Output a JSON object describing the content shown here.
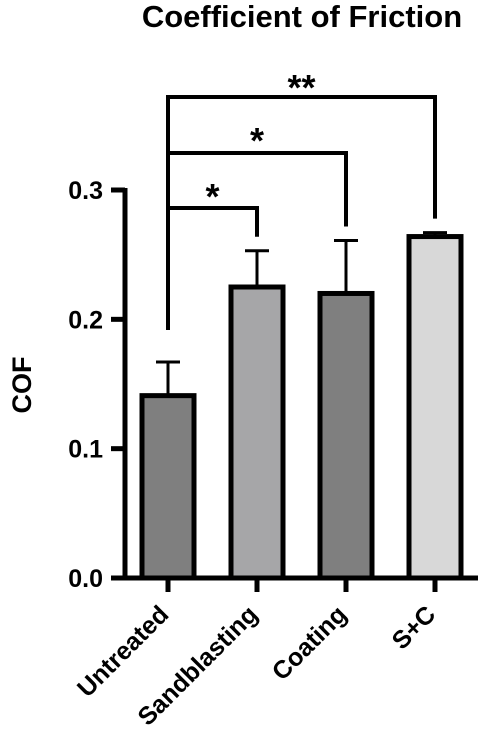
{
  "chart_data": {
    "type": "bar",
    "title": "Coefficient of Friction",
    "ylabel": "COF",
    "xlabel": "",
    "ylim": [
      0,
      0.3
    ],
    "yticks": [
      "0.0",
      "0.1",
      "0.2",
      "0.3"
    ],
    "categories": [
      "Untreated",
      "Sandblasting",
      "Coating",
      "S+C"
    ],
    "values": [
      0.141,
      0.225,
      0.22,
      0.264
    ],
    "errors": [
      0.026,
      0.028,
      0.041,
      0.003
    ],
    "colors": [
      "#7f7f7f",
      "#a6a6a8",
      "#7f7f7f",
      "#d8d8d8"
    ],
    "significance": [
      {
        "from": "Untreated",
        "to": "Sandblasting",
        "label": "*"
      },
      {
        "from": "Untreated",
        "to": "Coating",
        "label": "*"
      },
      {
        "from": "Untreated",
        "to": "S+C",
        "label": "**"
      }
    ]
  }
}
